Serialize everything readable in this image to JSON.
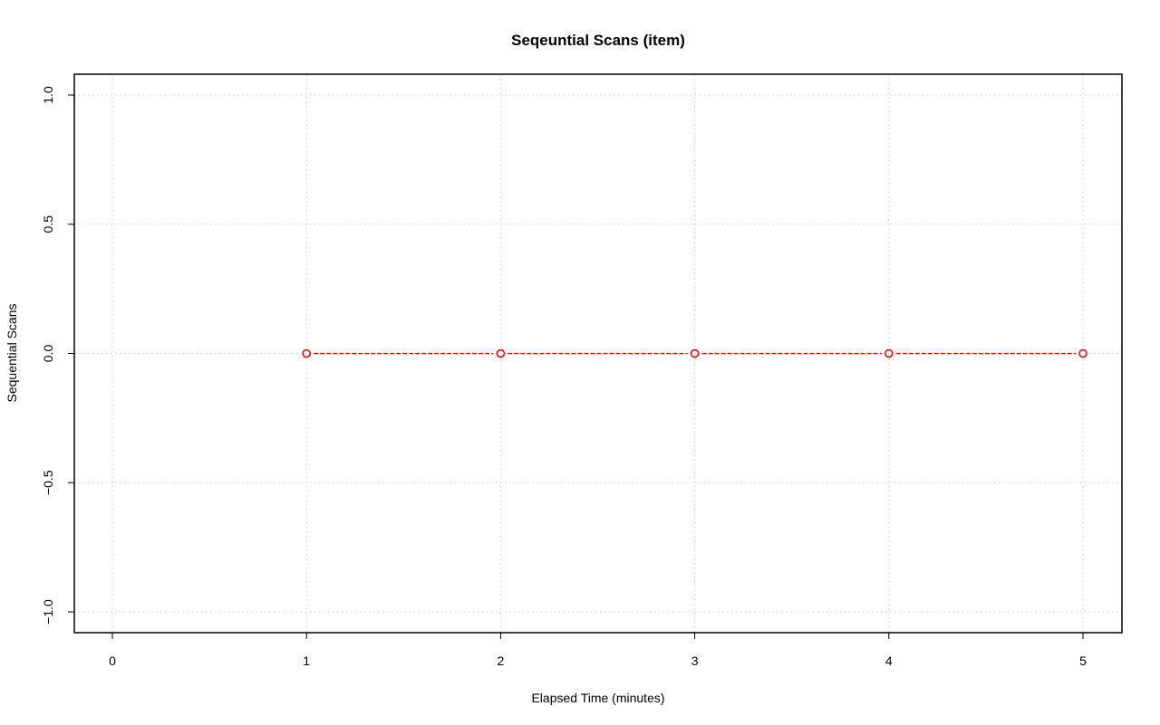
{
  "chart_data": {
    "type": "line",
    "title": "Seqeuntial Scans (item)",
    "xlabel": "Elapsed Time (minutes)",
    "ylabel": "Sequential Scans",
    "xlim": [
      0,
      5
    ],
    "ylim": [
      -1.0,
      1.0
    ],
    "xticks": [
      0,
      1,
      2,
      3,
      4,
      5
    ],
    "xtick_labels": [
      "0",
      "1",
      "2",
      "3",
      "4",
      "5"
    ],
    "yticks": [
      -1.0,
      -0.5,
      0.0,
      0.5,
      1.0
    ],
    "ytick_labels": [
      "−1.0",
      "−0.5",
      "0.0",
      "0.5",
      "1.0"
    ],
    "grid": true,
    "series": [
      {
        "x": [
          1,
          2,
          3,
          4,
          5
        ],
        "values": [
          0,
          0,
          0,
          0,
          0
        ],
        "color": "#e00000",
        "line_style": "dashed",
        "marker": "open-circle"
      }
    ]
  }
}
